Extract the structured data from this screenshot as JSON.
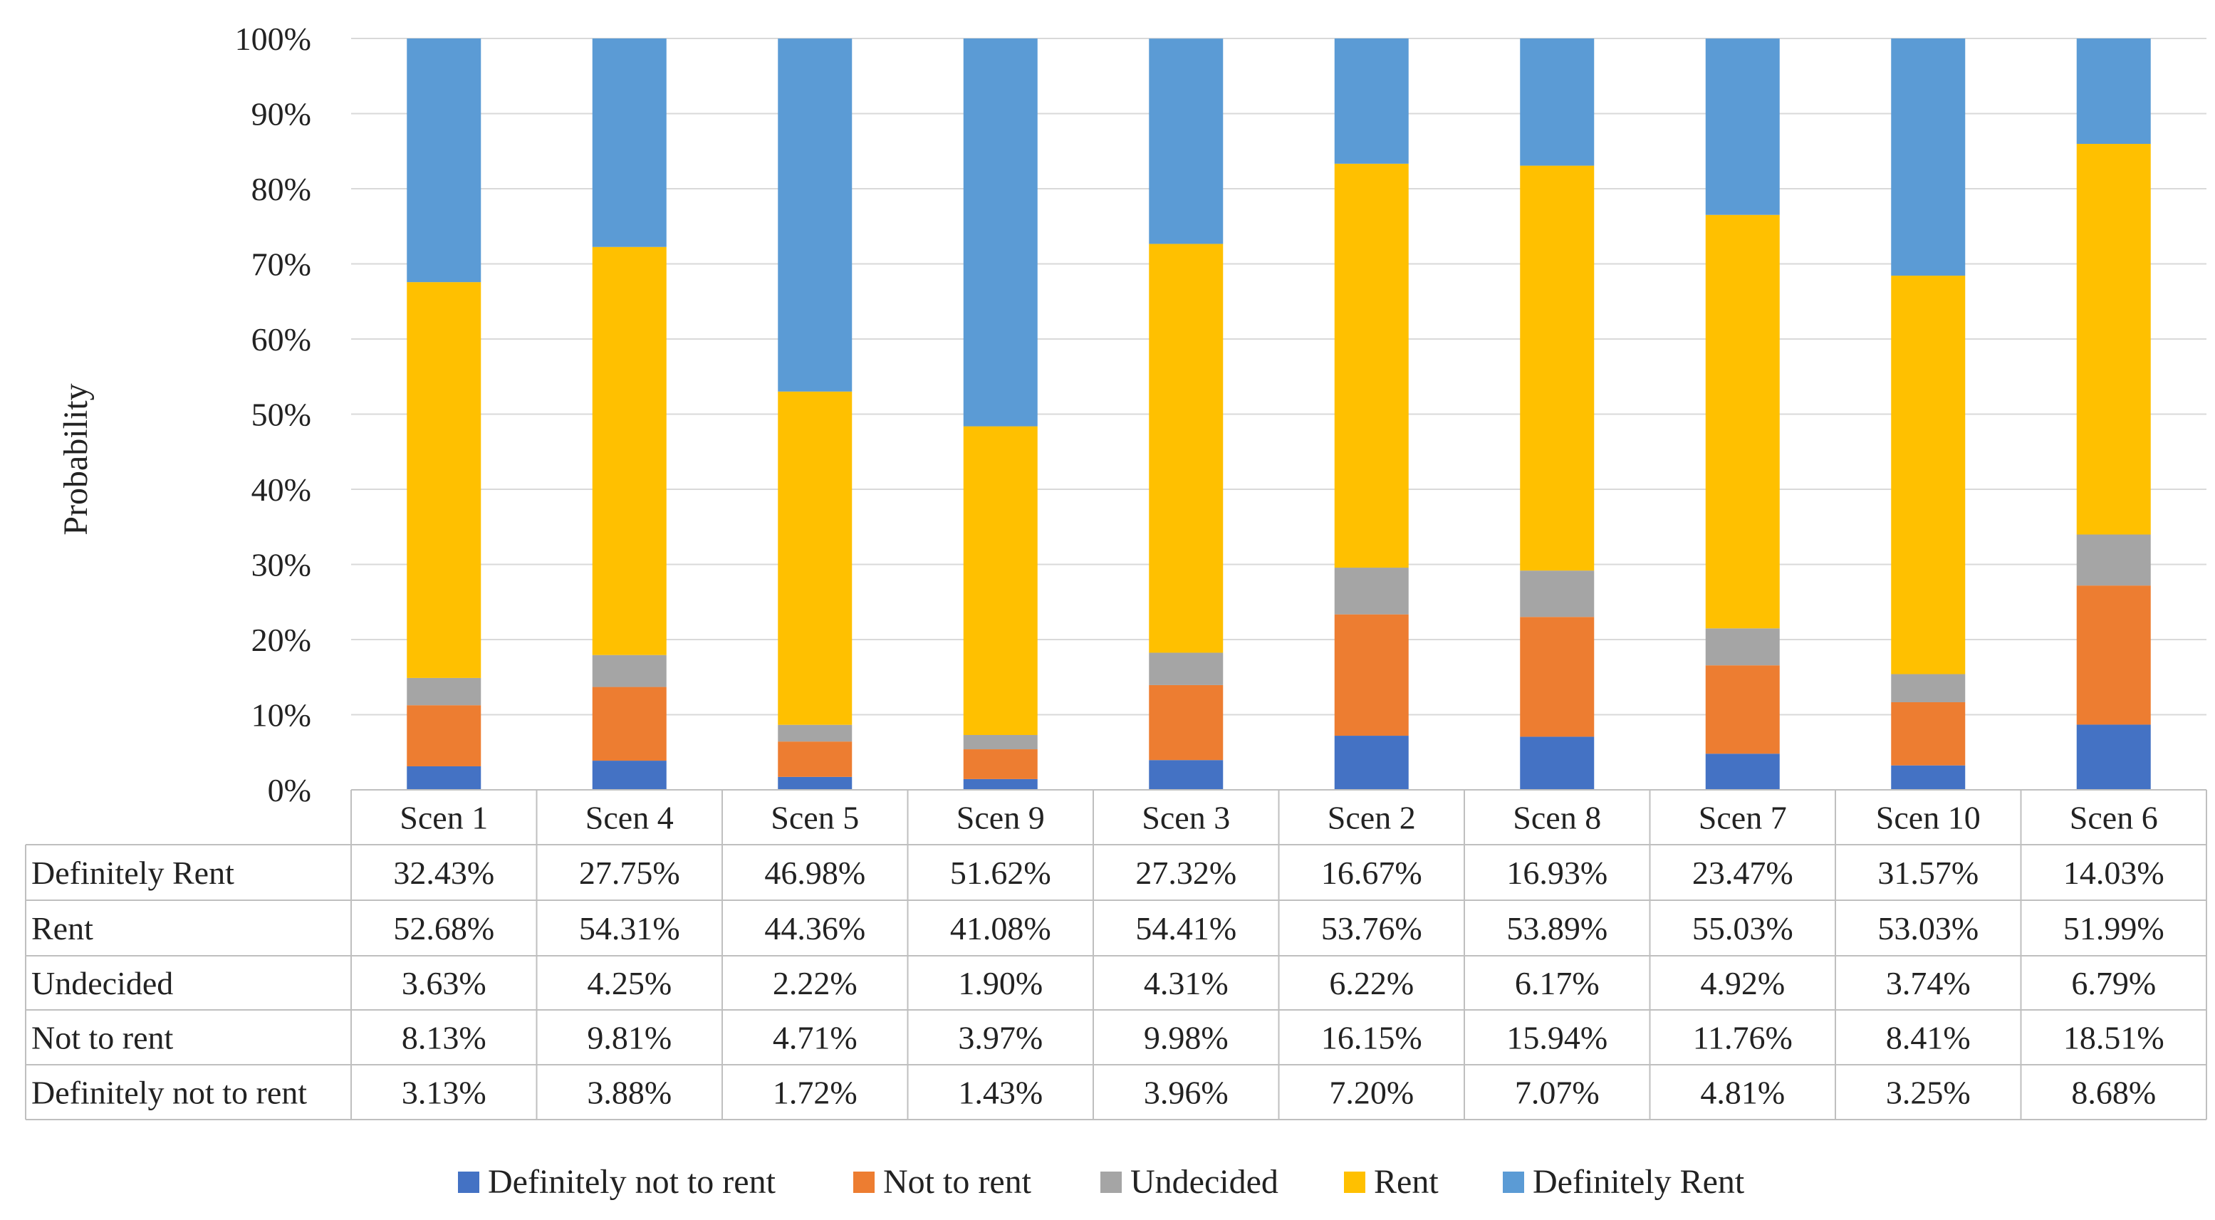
{
  "chart_data": {
    "type": "bar",
    "stacked": true,
    "title": "",
    "xlabel": "",
    "ylabel": "Probability",
    "ylim": [
      0,
      100
    ],
    "y_ticks": [
      "0%",
      "10%",
      "20%",
      "30%",
      "40%",
      "50%",
      "60%",
      "70%",
      "80%",
      "90%",
      "100%"
    ],
    "grid": true,
    "legend_position": "bottom",
    "categories": [
      "Scen 1",
      "Scen 4",
      "Scen 5",
      "Scen 9",
      "Scen 3",
      "Scen 2",
      "Scen 8",
      "Scen 7",
      "Scen 10",
      "Scen 6"
    ],
    "series": [
      {
        "name": "Definitely not to rent",
        "color": "#4472C4",
        "values": [
          3.13,
          3.88,
          1.72,
          1.43,
          3.96,
          7.2,
          7.07,
          4.81,
          3.25,
          8.68
        ],
        "labels": [
          "3.13%",
          "3.88%",
          "1.72%",
          "1.43%",
          "3.96%",
          "7.20%",
          "7.07%",
          "4.81%",
          "3.25%",
          "8.68%"
        ]
      },
      {
        "name": "Not to rent",
        "color": "#ED7D31",
        "values": [
          8.13,
          9.81,
          4.71,
          3.97,
          9.98,
          16.15,
          15.94,
          11.76,
          8.41,
          18.51
        ],
        "labels": [
          "8.13%",
          "9.81%",
          "4.71%",
          "3.97%",
          "9.98%",
          "16.15%",
          "15.94%",
          "11.76%",
          "8.41%",
          "18.51%"
        ]
      },
      {
        "name": "Undecided",
        "color": "#A5A5A5",
        "values": [
          3.63,
          4.25,
          2.22,
          1.9,
          4.31,
          6.22,
          6.17,
          4.92,
          3.74,
          6.79
        ],
        "labels": [
          "3.63%",
          "4.25%",
          "2.22%",
          "1.90%",
          "4.31%",
          "6.22%",
          "6.17%",
          "4.92%",
          "3.74%",
          "6.79%"
        ]
      },
      {
        "name": "Rent",
        "color": "#FFC000",
        "values": [
          52.68,
          54.31,
          44.36,
          41.08,
          54.41,
          53.76,
          53.89,
          55.03,
          53.03,
          51.99
        ],
        "labels": [
          "52.68%",
          "54.31%",
          "44.36%",
          "41.08%",
          "54.41%",
          "53.76%",
          "53.89%",
          "55.03%",
          "53.03%",
          "51.99%"
        ]
      },
      {
        "name": "Definitely Rent",
        "color": "#5B9BD5",
        "values": [
          32.43,
          27.75,
          46.98,
          51.62,
          27.32,
          16.67,
          16.93,
          23.47,
          31.57,
          14.03
        ],
        "labels": [
          "32.43%",
          "27.75%",
          "46.98%",
          "51.62%",
          "27.32%",
          "16.67%",
          "16.93%",
          "23.47%",
          "31.57%",
          "14.03%"
        ]
      }
    ],
    "table_row_order": [
      "Definitely Rent",
      "Rent",
      "Undecided",
      "Not to rent",
      "Definitely not to rent"
    ]
  }
}
